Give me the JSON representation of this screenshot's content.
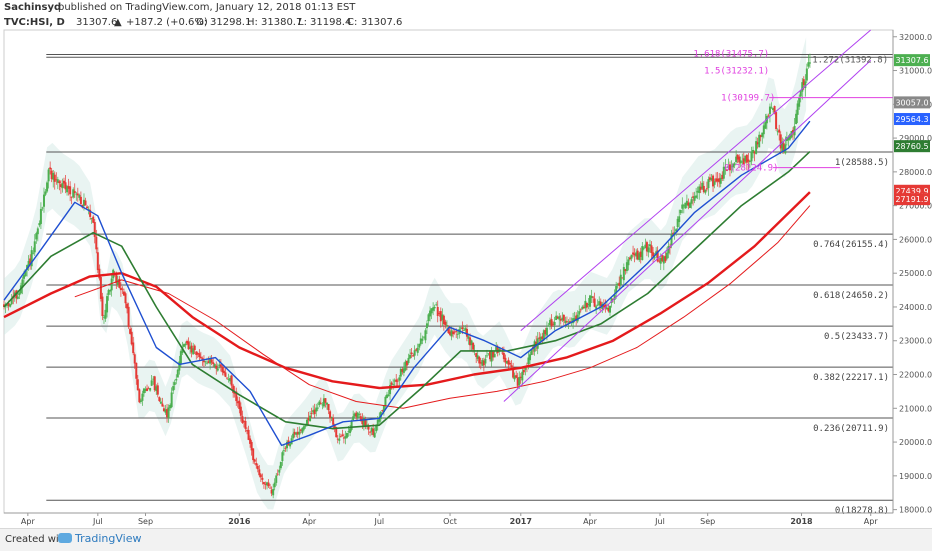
{
  "header": {
    "author": "Sachinsyd",
    "published": "published on TradingView.com, January 12, 2018 01:13 EST",
    "symbol": "TVC:HSI, D",
    "last": "31307.6",
    "change": "+187.2 (+0.6%)",
    "o_label": "O:",
    "o": "31298.1",
    "h_label": "H:",
    "h": "31380.7",
    "l_label": "L:",
    "l": "31198.4",
    "c_label": "C:",
    "c": "31307.6"
  },
  "footer": {
    "created_with": "Created with",
    "brand": "TradingView"
  },
  "colors": {
    "up": "#4caf50",
    "down": "#e53935",
    "ma_red": "#e41a1c",
    "ma_green": "#2e7d32",
    "ma_blue": "#1f4fd1",
    "fib_line": "#555555",
    "channel": "#b040f0",
    "ext_line": "#e040e0",
    "badge_green": "#4caf50",
    "badge_red": "#e53935",
    "badge_gray": "#888888",
    "badge_blue": "#2962ff",
    "badge_darkgreen": "#2e7d32"
  },
  "chart_data": {
    "type": "line",
    "title": "TVC:HSI, D",
    "y_range": [
      17900,
      32200
    ],
    "y_ticks": [
      18000,
      19000,
      20000,
      21000,
      22000,
      23000,
      24000,
      25000,
      26000,
      27000,
      28000,
      29000,
      30000,
      31000,
      32000
    ],
    "y_tick_labels": [
      "18000.0",
      "19000.0",
      "20000.0",
      "21000.0",
      "22000.0",
      "23000.0",
      "24000.0",
      "25000.0",
      "26000.0",
      "27000.0",
      "28000.0",
      "29000.0",
      "30000.0",
      "31000.0",
      "32000.0"
    ],
    "x_range": [
      "2015-03-01",
      "2018-04-30"
    ],
    "x_ticks": [
      {
        "date": "2015-04-01",
        "label": "Apr",
        "bold": false
      },
      {
        "date": "2015-07-01",
        "label": "Jul",
        "bold": false
      },
      {
        "date": "2015-09-01",
        "label": "Sep",
        "bold": false
      },
      {
        "date": "2016-01-01",
        "label": "2016",
        "bold": true
      },
      {
        "date": "2016-04-01",
        "label": "Apr",
        "bold": false
      },
      {
        "date": "2016-07-01",
        "label": "Jul",
        "bold": false
      },
      {
        "date": "2016-10-01",
        "label": "Oct",
        "bold": false
      },
      {
        "date": "2017-01-01",
        "label": "2017",
        "bold": true
      },
      {
        "date": "2017-04-01",
        "label": "Apr",
        "bold": false
      },
      {
        "date": "2017-07-01",
        "label": "Jul",
        "bold": false
      },
      {
        "date": "2017-09-01",
        "label": "Sep",
        "bold": false
      },
      {
        "date": "2018-01-01",
        "label": "2018",
        "bold": true
      },
      {
        "date": "2018-04-01",
        "label": "Apr",
        "bold": false
      }
    ],
    "price_path": [
      [
        "2015-03-01",
        24000
      ],
      [
        "2015-03-20",
        24400
      ],
      [
        "2015-04-10",
        25800
      ],
      [
        "2015-04-28",
        28000
      ],
      [
        "2015-05-15",
        27600
      ],
      [
        "2015-06-05",
        27300
      ],
      [
        "2015-06-25",
        26600
      ],
      [
        "2015-07-08",
        23600
      ],
      [
        "2015-07-20",
        25000
      ],
      [
        "2015-08-05",
        24300
      ],
      [
        "2015-08-24",
        21300
      ],
      [
        "2015-09-10",
        21800
      ],
      [
        "2015-09-29",
        20800
      ],
      [
        "2015-10-20",
        22900
      ],
      [
        "2015-11-10",
        22500
      ],
      [
        "2015-12-01",
        22300
      ],
      [
        "2015-12-20",
        21800
      ],
      [
        "2016-01-10",
        20300
      ],
      [
        "2016-01-25",
        19100
      ],
      [
        "2016-02-12",
        18500
      ],
      [
        "2016-03-01",
        19900
      ],
      [
        "2016-03-25",
        20500
      ],
      [
        "2016-04-20",
        21300
      ],
      [
        "2016-05-10",
        20000
      ],
      [
        "2016-06-01",
        20800
      ],
      [
        "2016-06-24",
        20300
      ],
      [
        "2016-07-15",
        21600
      ],
      [
        "2016-08-05",
        22300
      ],
      [
        "2016-08-25",
        23000
      ],
      [
        "2016-09-09",
        24100
      ],
      [
        "2016-09-30",
        23300
      ],
      [
        "2016-10-20",
        23300
      ],
      [
        "2016-11-10",
        22300
      ],
      [
        "2016-12-05",
        22800
      ],
      [
        "2016-12-28",
        21700
      ],
      [
        "2017-01-20",
        22900
      ],
      [
        "2017-02-15",
        23700
      ],
      [
        "2017-03-10",
        23600
      ],
      [
        "2017-04-01",
        24200
      ],
      [
        "2017-04-25",
        24000
      ],
      [
        "2017-05-20",
        25300
      ],
      [
        "2017-06-15",
        25800
      ],
      [
        "2017-07-05",
        25300
      ],
      [
        "2017-07-30",
        26900
      ],
      [
        "2017-08-20",
        27500
      ],
      [
        "2017-09-10",
        27700
      ],
      [
        "2017-10-05",
        28300
      ],
      [
        "2017-10-25",
        28400
      ],
      [
        "2017-11-15",
        29300
      ],
      [
        "2017-11-22",
        30100
      ],
      [
        "2017-12-06",
        28700
      ],
      [
        "2017-12-20",
        29200
      ],
      [
        "2018-01-02",
        30500
      ],
      [
        "2018-01-12",
        31307.6
      ]
    ],
    "series": [
      {
        "name": "",
        "color": "#e41a1c",
        "width": 2.4,
        "points": [
          [
            "2015-03-01",
            23700
          ],
          [
            "2015-05-01",
            24400
          ],
          [
            "2015-06-20",
            24900
          ],
          [
            "2015-08-01",
            25000
          ],
          [
            "2015-09-15",
            24600
          ],
          [
            "2015-11-01",
            23700
          ],
          [
            "2016-01-01",
            22800
          ],
          [
            "2016-03-01",
            22200
          ],
          [
            "2016-05-01",
            21800
          ],
          [
            "2016-07-01",
            21600
          ],
          [
            "2016-09-01",
            21700
          ],
          [
            "2016-11-01",
            22000
          ],
          [
            "2017-01-01",
            22200
          ],
          [
            "2017-03-01",
            22500
          ],
          [
            "2017-05-01",
            23000
          ],
          [
            "2017-07-01",
            23800
          ],
          [
            "2017-09-01",
            24700
          ],
          [
            "2017-11-01",
            25800
          ],
          [
            "2018-01-12",
            27400
          ]
        ]
      },
      {
        "name": "",
        "color": "#e41a1c",
        "width": 1,
        "points": [
          [
            "2015-06-01",
            24300
          ],
          [
            "2015-08-01",
            24800
          ],
          [
            "2015-10-01",
            24400
          ],
          [
            "2015-12-01",
            23600
          ],
          [
            "2016-02-01",
            22600
          ],
          [
            "2016-04-01",
            21700
          ],
          [
            "2016-06-01",
            21200
          ],
          [
            "2016-08-01",
            21000
          ],
          [
            "2016-10-01",
            21300
          ],
          [
            "2016-12-01",
            21500
          ],
          [
            "2017-02-01",
            21800
          ],
          [
            "2017-04-01",
            22200
          ],
          [
            "2017-06-01",
            22800
          ],
          [
            "2017-08-01",
            23700
          ],
          [
            "2017-10-01",
            24700
          ],
          [
            "2017-12-01",
            25900
          ],
          [
            "2018-01-12",
            27000
          ]
        ]
      },
      {
        "name": "",
        "color": "#2e7d32",
        "width": 1.6,
        "points": [
          [
            "2015-03-01",
            24000
          ],
          [
            "2015-05-01",
            25500
          ],
          [
            "2015-06-25",
            26200
          ],
          [
            "2015-08-01",
            25800
          ],
          [
            "2015-09-15",
            24000
          ],
          [
            "2015-11-01",
            22300
          ],
          [
            "2016-01-01",
            21400
          ],
          [
            "2016-03-01",
            20600
          ],
          [
            "2016-05-01",
            20400
          ],
          [
            "2016-07-01",
            20500
          ],
          [
            "2016-08-25",
            21600
          ],
          [
            "2016-10-15",
            22700
          ],
          [
            "2016-12-15",
            22700
          ],
          [
            "2017-02-15",
            23000
          ],
          [
            "2017-04-15",
            23500
          ],
          [
            "2017-06-15",
            24400
          ],
          [
            "2017-08-15",
            25700
          ],
          [
            "2017-10-15",
            27000
          ],
          [
            "2017-12-15",
            28000
          ],
          [
            "2018-01-12",
            28600
          ]
        ]
      },
      {
        "name": "",
        "color": "#1f4fd1",
        "width": 1.4,
        "points": [
          [
            "2015-03-01",
            24200
          ],
          [
            "2015-04-15",
            25600
          ],
          [
            "2015-06-01",
            27100
          ],
          [
            "2015-07-01",
            26700
          ],
          [
            "2015-08-01",
            25000
          ],
          [
            "2015-09-15",
            22800
          ],
          [
            "2015-10-15",
            22300
          ],
          [
            "2015-12-01",
            22500
          ],
          [
            "2016-01-15",
            21500
          ],
          [
            "2016-02-25",
            19900
          ],
          [
            "2016-04-01",
            20200
          ],
          [
            "2016-05-15",
            20600
          ],
          [
            "2016-07-01",
            20700
          ],
          [
            "2016-08-15",
            22200
          ],
          [
            "2016-09-30",
            23400
          ],
          [
            "2016-11-15",
            23000
          ],
          [
            "2017-01-01",
            22500
          ],
          [
            "2017-02-15",
            23300
          ],
          [
            "2017-04-15",
            24000
          ],
          [
            "2017-06-15",
            25300
          ],
          [
            "2017-08-15",
            26800
          ],
          [
            "2017-10-15",
            27900
          ],
          [
            "2017-12-15",
            28700
          ],
          [
            "2018-01-12",
            29500
          ]
        ]
      }
    ],
    "fib_levels": [
      {
        "label": "1(28588.5)",
        "value": 28588.5
      },
      {
        "label": "0.764(26155.4)",
        "value": 26155.4
      },
      {
        "label": "0.618(24650.2)",
        "value": 24650.2
      },
      {
        "label": "0.5(23433.7)",
        "value": 23433.7
      },
      {
        "label": "0.382(22217.1)",
        "value": 22217.1
      },
      {
        "label": "0.236(20711.9)",
        "value": 20711.9
      },
      {
        "label": "0(18278.8)",
        "value": 18278.8
      }
    ],
    "extension_labels": [
      {
        "label": "1.618(31475.7)",
        "value": 31475.7
      },
      {
        "label": "1.5(31232.1)",
        "value": 31232.1
      },
      {
        "label": "1.272(31392.8)",
        "value": 31392.8
      },
      {
        "label": "1(30199.7)",
        "value": 30199.7
      },
      {
        "label": "0(28124.9)",
        "value": 28124.9
      }
    ],
    "channel": {
      "upper": [
        [
          "2017-01-01",
          23300
        ],
        [
          "2018-04-01",
          32200
        ]
      ],
      "lower": [
        [
          "2016-12-10",
          21200
        ],
        [
          "2018-04-01",
          31300
        ]
      ]
    },
    "price_badges": [
      {
        "label": "31307.6",
        "value": 31307.6,
        "color": "#4caf50"
      },
      {
        "label": "30057.0",
        "value": 30057.0,
        "color": "#888888"
      },
      {
        "label": "29564.3",
        "value": 29564.3,
        "color": "#2962ff"
      },
      {
        "label": "28760.5",
        "value": 28760.5,
        "color": "#2e7d32"
      },
      {
        "label": "27439.9",
        "value": 27439.9,
        "color": "#e53935"
      },
      {
        "label": "27191.9",
        "value": 27191.9,
        "color": "#e53935"
      }
    ]
  }
}
